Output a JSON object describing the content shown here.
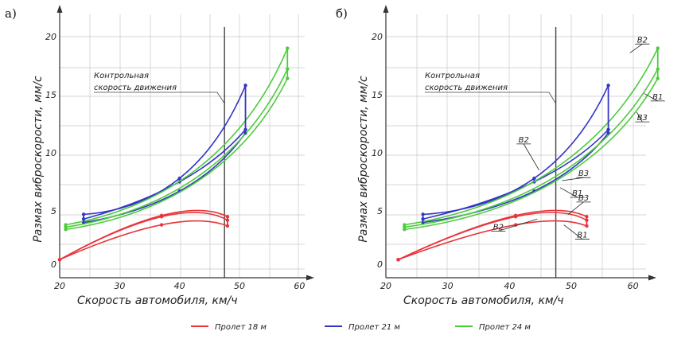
{
  "legend": [
    {
      "label": "Пролет 18 м",
      "color": "#e8343a"
    },
    {
      "label": "Пролет 21 м",
      "color": "#3434c8"
    },
    {
      "label": "Пролет 24 м",
      "color": "#4ccc3c"
    }
  ],
  "chart_data": [
    {
      "type": "line",
      "panel_label": "а)",
      "xlabel": "Скорость автомобиля, км/ч",
      "ylabel": "Размах виброскорости, мм/с",
      "xlim": [
        20,
        63
      ],
      "ylim": [
        0,
        21
      ],
      "xticks": [
        "20",
        "30",
        "40",
        "50",
        "60"
      ],
      "yticks": [
        "0",
        "5",
        "10",
        "15",
        "20"
      ],
      "control_speed": {
        "x": 47.5,
        "label_line1": "Контрольная",
        "label_line2": "скорость движения"
      },
      "series": [
        {
          "group": "Пролет 18 м",
          "color": "#e8343a",
          "x": [
            20,
            37,
            48
          ],
          "y": [
            0.8,
            4.6,
            4.5
          ]
        },
        {
          "group": "Пролет 18 м",
          "color": "#e8343a",
          "x": [
            20,
            37,
            48
          ],
          "y": [
            0.8,
            4.5,
            4.2
          ]
        },
        {
          "group": "Пролет 18 м",
          "color": "#e8343a",
          "x": [
            20,
            37,
            48
          ],
          "y": [
            0.8,
            3.8,
            3.7
          ]
        },
        {
          "group": "Пролет 21 м",
          "color": "#3434c8",
          "x": [
            24,
            40,
            51
          ],
          "y": [
            4.7,
            7.8,
            15.8
          ]
        },
        {
          "group": "Пролет 21 м",
          "color": "#3434c8",
          "x": [
            24,
            40,
            51
          ],
          "y": [
            4.3,
            7.5,
            12.0
          ]
        },
        {
          "group": "Пролет 21 м",
          "color": "#3434c8",
          "x": [
            24,
            40,
            51
          ],
          "y": [
            4.0,
            6.7,
            11.7
          ]
        },
        {
          "group": "Пролет 24 м",
          "color": "#4ccc3c",
          "x": [
            21,
            58
          ],
          "y": [
            3.8,
            19.0
          ]
        },
        {
          "group": "Пролет 24 м",
          "color": "#4ccc3c",
          "x": [
            21,
            58
          ],
          "y": [
            3.6,
            17.2
          ]
        },
        {
          "group": "Пролет 24 м",
          "color": "#4ccc3c",
          "x": [
            21,
            58
          ],
          "y": [
            3.4,
            16.4
          ]
        }
      ],
      "curve_labels": []
    },
    {
      "type": "line",
      "panel_label": "б)",
      "xlabel": "Скорость автомобиля, км/ч",
      "ylabel": "Размах виброскорости, мм/с",
      "xlim": [
        20,
        66
      ],
      "ylim": [
        0,
        21
      ],
      "xticks": [
        "20",
        "30",
        "40",
        "50",
        "60"
      ],
      "yticks": [
        "0",
        "5",
        "10",
        "15",
        "20"
      ],
      "control_speed": {
        "x": 47.5,
        "label_line1": "Контрольная",
        "label_line2": "скорость движения"
      },
      "series": [
        {
          "group": "Пролет 18 м",
          "color": "#e8343a",
          "x": [
            22,
            41,
            52.5
          ],
          "y": [
            0.8,
            4.6,
            4.5
          ]
        },
        {
          "group": "Пролет 18 м",
          "color": "#e8343a",
          "x": [
            22,
            41,
            52.5
          ],
          "y": [
            0.8,
            4.5,
            4.2
          ]
        },
        {
          "group": "Пролет 18 м",
          "color": "#e8343a",
          "x": [
            22,
            41,
            52.5
          ],
          "y": [
            0.8,
            3.8,
            3.7
          ]
        },
        {
          "group": "Пролет 21 м",
          "color": "#3434c8",
          "x": [
            26,
            44,
            56
          ],
          "y": [
            4.7,
            7.8,
            15.8
          ]
        },
        {
          "group": "Пролет 21 м",
          "color": "#3434c8",
          "x": [
            26,
            44,
            56
          ],
          "y": [
            4.3,
            7.5,
            12.0
          ]
        },
        {
          "group": "Пролет 21 м",
          "color": "#3434c8",
          "x": [
            26,
            44,
            56
          ],
          "y": [
            4.0,
            6.7,
            11.7
          ]
        },
        {
          "group": "Пролет 24 м",
          "color": "#4ccc3c",
          "x": [
            23,
            64
          ],
          "y": [
            3.8,
            19.0
          ]
        },
        {
          "group": "Пролет 24 м",
          "color": "#4ccc3c",
          "x": [
            23,
            64
          ],
          "y": [
            3.6,
            17.2
          ]
        },
        {
          "group": "Пролет 24 м",
          "color": "#4ccc3c",
          "x": [
            23,
            64
          ],
          "y": [
            3.4,
            16.4
          ]
        }
      ],
      "curve_labels": [
        {
          "text": "В2",
          "x": 61.5,
          "y": 19.5,
          "tx": 59.5,
          "ty": 18.6
        },
        {
          "text": "В1",
          "x": 64.0,
          "y": 14.6,
          "tx": 61.8,
          "ty": 15.1
        },
        {
          "text": "В3",
          "x": 61.5,
          "y": 12.8,
          "tx": 60.6,
          "ty": 13.5
        },
        {
          "text": "В2",
          "x": 42.3,
          "y": 10.9,
          "tx": 44.8,
          "ty": 8.5
        },
        {
          "text": "В3",
          "x": 52.0,
          "y": 8.0,
          "tx": 48.5,
          "ty": 7.6
        },
        {
          "text": "В1",
          "x": 51.0,
          "y": 6.3,
          "tx": 48.2,
          "ty": 7.0
        },
        {
          "text": "В3",
          "x": 52.0,
          "y": 5.9,
          "tx": 49.5,
          "ty": 4.7
        },
        {
          "text": "В2",
          "x": 38.2,
          "y": 3.4,
          "tx": 44.5,
          "ty": 4.3
        },
        {
          "text": "В1",
          "x": 51.8,
          "y": 2.7,
          "tx": 48.8,
          "ty": 3.8
        }
      ]
    }
  ]
}
